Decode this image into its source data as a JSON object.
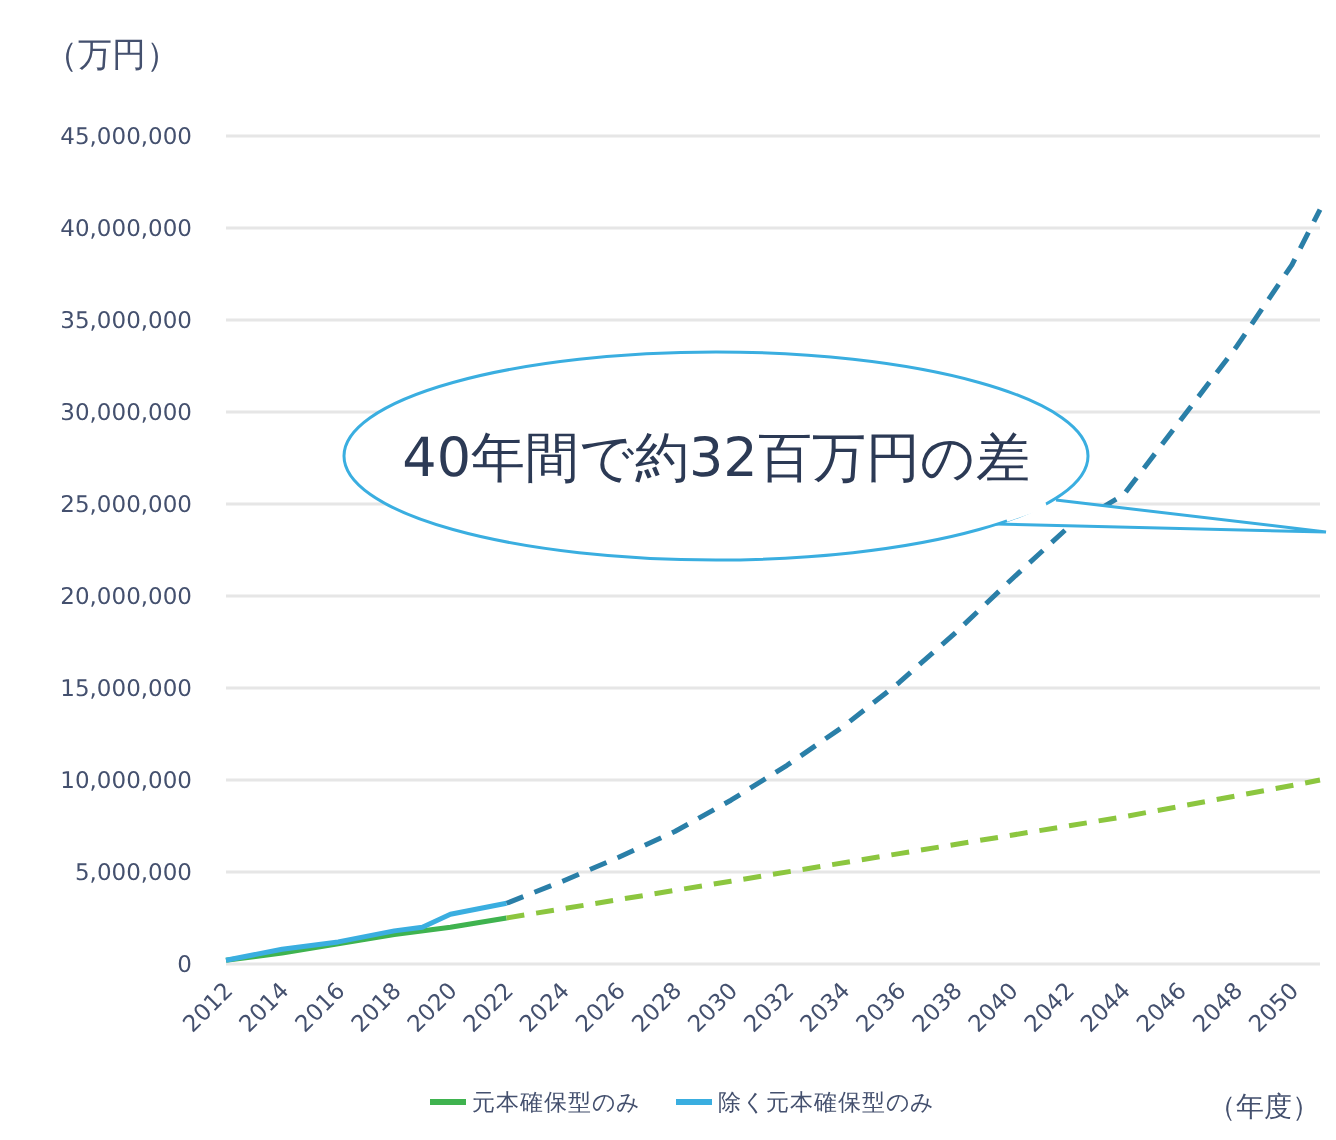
{
  "chart_data": {
    "type": "line",
    "ylabel": "（万円）",
    "xlabel": "（年度）",
    "xlim": [
      2012,
      2051
    ],
    "xticks": [
      2012,
      2014,
      2016,
      2018,
      2020,
      2022,
      2024,
      2026,
      2028,
      2030,
      2032,
      2034,
      2036,
      2038,
      2040,
      2042,
      2044,
      2046,
      2048,
      2050
    ],
    "ylim": [
      0,
      45000000
    ],
    "yticks": [
      0,
      {
        "value": 5000000,
        "label": "5,000,000"
      },
      {
        "value": 10000000,
        "label": "10,000,000"
      },
      {
        "value": 15000000,
        "label": "15,000,000"
      },
      {
        "value": 20000000,
        "label": "20,000,000"
      },
      {
        "value": 25000000,
        "label": "25,000,000"
      },
      {
        "value": 30000000,
        "label": "30,000,000"
      },
      {
        "value": 35000000,
        "label": "35,000,000"
      },
      {
        "value": 40000000,
        "label": "40,000,000"
      },
      {
        "value": 45000000,
        "label": "45,000,000"
      }
    ],
    "grid": "y",
    "legend": "bottom",
    "marker": "none",
    "annotations": [
      "40年間で約32百万円の差"
    ],
    "series": [
      {
        "name": "元本確保型のみ",
        "color": "#3fb34f",
        "line_style": "solid",
        "x": [
          2012,
          2014,
          2016,
          2018,
          2020,
          2022
        ],
        "values": [
          200000,
          600000,
          1100000,
          1600000,
          2000000,
          2500000
        ]
      },
      {
        "color": "#8cc63f",
        "line_style": "dashed",
        "x": [
          2022,
          2026,
          2030,
          2036,
          2044,
          2050,
          2051
        ],
        "values": [
          2500000,
          3500000,
          4500000,
          6000000,
          8000000,
          9700000,
          10000000
        ]
      },
      {
        "name": "除く元本確保型のみ",
        "color": "#3aaee0",
        "line_style": "solid",
        "x": [
          2012,
          2014,
          2016,
          2018,
          2019,
          2020,
          2021,
          2022
        ],
        "values": [
          200000,
          800000,
          1200000,
          1800000,
          2000000,
          2700000,
          3000000,
          3300000
        ]
      },
      {
        "color": "#2a7fa8",
        "line_style": "dashed",
        "x": [
          2022,
          2024,
          2026,
          2028,
          2030,
          2032,
          2034,
          2036,
          2038,
          2040,
          2042,
          2044,
          2046,
          2048,
          2050,
          2051
        ],
        "values": [
          3300000,
          4500000,
          5800000,
          7200000,
          8900000,
          10800000,
          12900000,
          15300000,
          18000000,
          20900000,
          23700000,
          25500000,
          29500000,
          33500000,
          38000000,
          41000000
        ]
      }
    ]
  }
}
